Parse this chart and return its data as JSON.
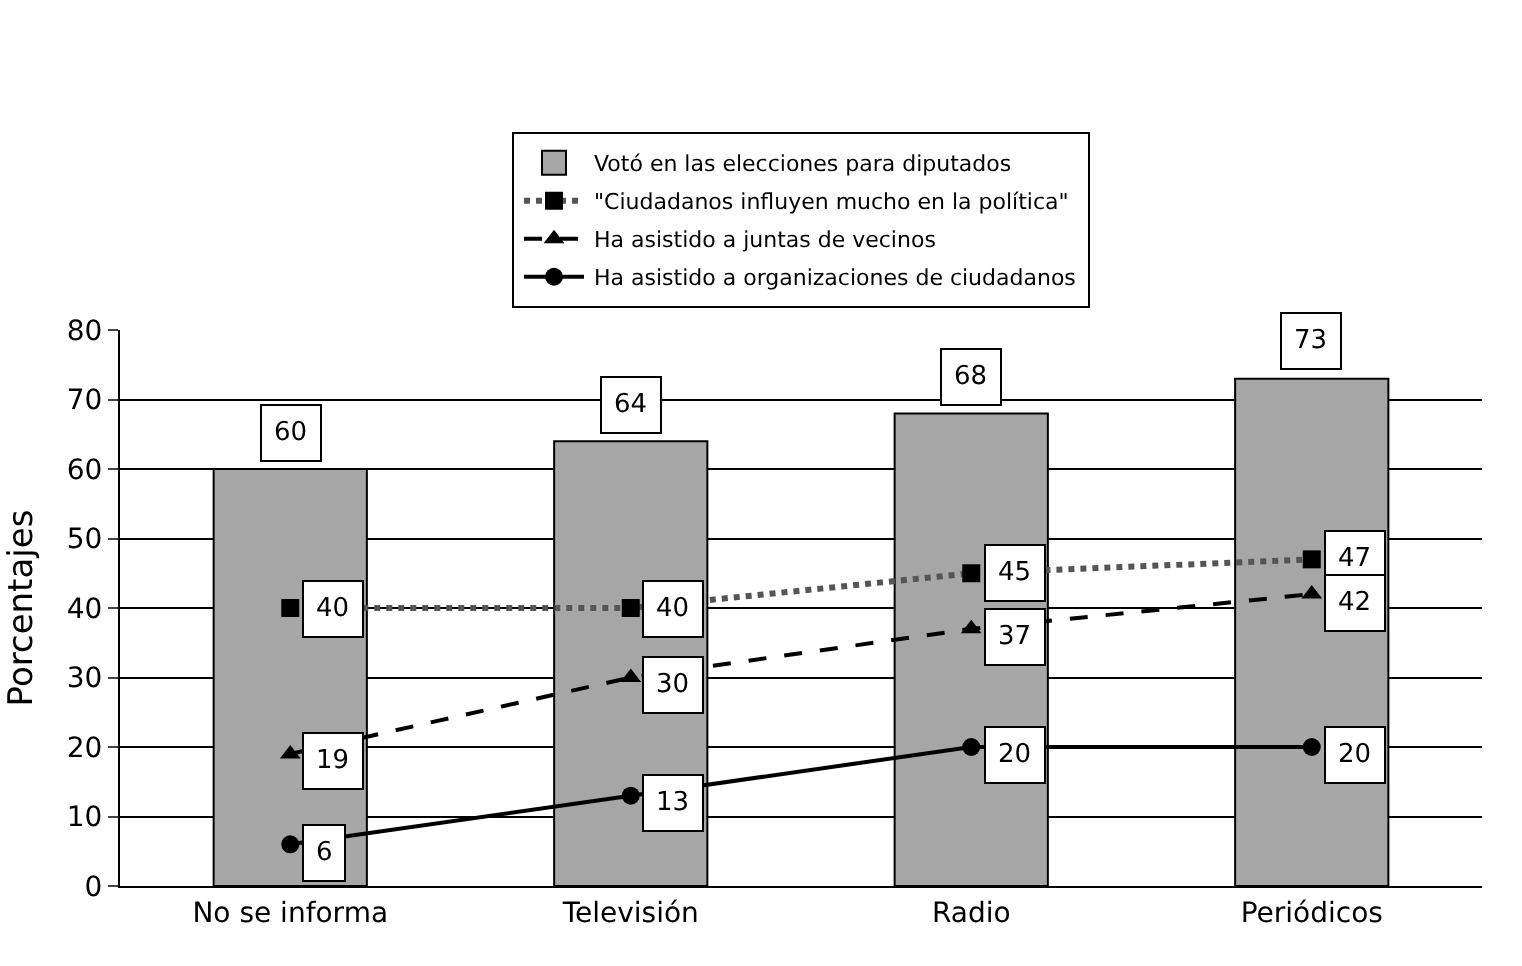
{
  "chart_data": {
    "type": "bar",
    "ylabel": "Porcentajes",
    "categories": [
      "No se informa",
      "Televisión",
      "Radio",
      "Periódicos"
    ],
    "series": [
      {
        "name": "Votó en las elecciones para diputados",
        "color": "#a6a6a6",
        "values": [
          60,
          64,
          68,
          73
        ]
      },
      {
        "name": "\"Ciudadanos influyen mucho en la política\"",
        "type": "line",
        "color": "#555555",
        "marker": "square",
        "line_style": "dotted",
        "values": [
          40,
          40,
          45,
          47
        ]
      },
      {
        "name": "Ha asistido a juntas de vecinos",
        "type": "line",
        "color": "#000000",
        "marker": "triangle",
        "line_style": "dashed",
        "values": [
          19,
          30,
          37,
          42
        ]
      },
      {
        "name": "Ha asistido a organizaciones de ciudadanos",
        "type": "line",
        "color": "#000000",
        "marker": "circle",
        "line_style": "solid",
        "values": [
          6,
          13,
          20,
          20
        ]
      }
    ],
    "ylim": [
      0,
      80
    ],
    "yticks": [
      0,
      10,
      20,
      30,
      40,
      50,
      60,
      70,
      80
    ],
    "grid": "y",
    "legend": "top",
    "data_labels": true
  }
}
